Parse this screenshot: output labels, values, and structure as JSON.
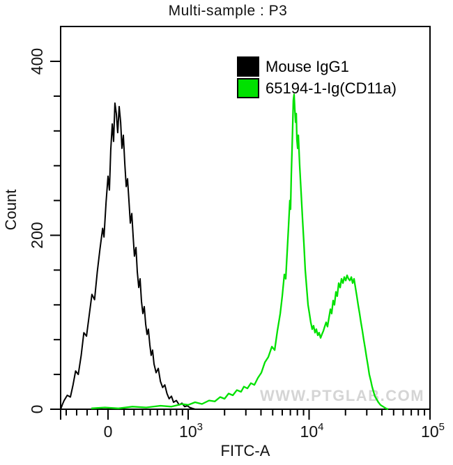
{
  "title": "Multi-sample : P3",
  "watermark": "WWW.PTGLAB.COM",
  "chart_data": {
    "type": "line",
    "subtype": "flow-cytometry-histogram",
    "title": "Multi-sample : P3",
    "xlabel": "FITC-A",
    "ylabel": "Count",
    "x_scale": "biexponential",
    "ylim": [
      0,
      440
    ],
    "grid": false,
    "legend_position": "top-right",
    "y_major_ticks": [
      {
        "value": 0,
        "label": "0"
      },
      {
        "value": 200,
        "label": "200"
      },
      {
        "value": 400,
        "label": "400"
      }
    ],
    "y_minor_ticks": [
      40,
      80,
      120,
      160,
      240,
      280,
      320,
      360
    ],
    "x_major_ticks": [
      {
        "value": 0,
        "base": "0",
        "exp": ""
      },
      {
        "value": 1000,
        "base": "10",
        "exp": "3"
      },
      {
        "value": 10000,
        "base": "10",
        "exp": "4"
      },
      {
        "value": 100000,
        "base": "10",
        "exp": "5"
      }
    ],
    "x_minor_ticks": [
      -400,
      -300,
      -200,
      -100,
      100,
      200,
      300,
      400,
      500,
      600,
      700,
      800,
      900,
      2000,
      3000,
      4000,
      5000,
      6000,
      7000,
      8000,
      9000,
      20000,
      30000,
      40000,
      50000,
      60000,
      70000,
      80000,
      90000
    ],
    "series": [
      {
        "name": "Mouse IgG1",
        "color": "#000000",
        "peak": {
          "x": 30,
          "count": 355
        },
        "points": [
          [
            -450,
            1
          ],
          [
            -435,
            6
          ],
          [
            -420,
            10
          ],
          [
            -390,
            16
          ],
          [
            -360,
            14
          ],
          [
            -335,
            28
          ],
          [
            -310,
            44
          ],
          [
            -285,
            40
          ],
          [
            -257,
            62
          ],
          [
            -231,
            88
          ],
          [
            -206,
            84
          ],
          [
            -180,
            108
          ],
          [
            -154,
            132
          ],
          [
            -129,
            126
          ],
          [
            -103,
            158
          ],
          [
            -77,
            184
          ],
          [
            -51,
            208
          ],
          [
            -39,
            198
          ],
          [
            -19,
            238
          ],
          [
            0,
            268
          ],
          [
            3,
            252
          ],
          [
            8,
            298
          ],
          [
            15,
            328
          ],
          [
            22,
            308
          ],
          [
            30,
            352
          ],
          [
            39,
            340
          ],
          [
            49,
            318
          ],
          [
            60,
            348
          ],
          [
            71,
            330
          ],
          [
            82,
            300
          ],
          [
            94,
            315
          ],
          [
            107,
            282
          ],
          [
            120,
            256
          ],
          [
            133,
            265
          ],
          [
            147,
            240
          ],
          [
            161,
            214
          ],
          [
            176,
            225
          ],
          [
            191,
            198
          ],
          [
            205,
            176
          ],
          [
            222,
            186
          ],
          [
            237,
            158
          ],
          [
            254,
            140
          ],
          [
            270,
            150
          ],
          [
            287,
            124
          ],
          [
            304,
            110
          ],
          [
            322,
            118
          ],
          [
            340,
            98
          ],
          [
            358,
            86
          ],
          [
            375,
            92
          ],
          [
            395,
            74
          ],
          [
            413,
            62
          ],
          [
            432,
            68
          ],
          [
            452,
            52
          ],
          [
            482,
            42
          ],
          [
            513,
            47
          ],
          [
            545,
            32
          ],
          [
            578,
            25
          ],
          [
            611,
            28
          ],
          [
            645,
            18
          ],
          [
            679,
            12
          ],
          [
            716,
            15
          ],
          [
            750,
            8
          ],
          [
            797,
            10
          ],
          [
            844,
            5
          ],
          [
            890,
            7
          ],
          [
            938,
            3
          ],
          [
            985,
            4
          ],
          [
            1030,
            2
          ],
          [
            1085,
            1
          ],
          [
            1140,
            0
          ]
        ]
      },
      {
        "name": "65194-1-Ig(CD11a)",
        "color": "#00e100",
        "peak": {
          "x": 7500,
          "count": 362
        },
        "secondary_peak": {
          "x": 21000,
          "count": 154
        },
        "points": [
          [
            -160,
            1
          ],
          [
            -30,
            2
          ],
          [
            54,
            1
          ],
          [
            183,
            3
          ],
          [
            348,
            2
          ],
          [
            545,
            4
          ],
          [
            716,
            3
          ],
          [
            890,
            6
          ],
          [
            1000,
            5
          ],
          [
            1140,
            8
          ],
          [
            1300,
            6
          ],
          [
            1490,
            10
          ],
          [
            1660,
            9
          ],
          [
            1840,
            14
          ],
          [
            2000,
            12
          ],
          [
            2160,
            18
          ],
          [
            2340,
            16
          ],
          [
            2530,
            22
          ],
          [
            2740,
            20
          ],
          [
            2890,
            26
          ],
          [
            3090,
            24
          ],
          [
            3300,
            30
          ],
          [
            3530,
            28
          ],
          [
            3770,
            36
          ],
          [
            4030,
            42
          ],
          [
            4310,
            54
          ],
          [
            4600,
            60
          ],
          [
            4920,
            72
          ],
          [
            5190,
            68
          ],
          [
            5470,
            90
          ],
          [
            5770,
            110
          ],
          [
            6000,
            130
          ],
          [
            6240,
            155
          ],
          [
            6410,
            150
          ],
          [
            6580,
            180
          ],
          [
            6760,
            210
          ],
          [
            6930,
            240
          ],
          [
            7030,
            230
          ],
          [
            7130,
            270
          ],
          [
            7230,
            300
          ],
          [
            7330,
            330
          ],
          [
            7410,
            355
          ],
          [
            7520,
            362
          ],
          [
            7620,
            345
          ],
          [
            7730,
            330
          ],
          [
            7830,
            340
          ],
          [
            7930,
            310
          ],
          [
            8040,
            300
          ],
          [
            8150,
            315
          ],
          [
            8360,
            280
          ],
          [
            8590,
            250
          ],
          [
            8810,
            220
          ],
          [
            9060,
            190
          ],
          [
            9290,
            160
          ],
          [
            9550,
            140
          ],
          [
            9800,
            120
          ],
          [
            10070,
            110
          ],
          [
            10330,
            100
          ],
          [
            10620,
            92
          ],
          [
            10890,
            96
          ],
          [
            11190,
            88
          ],
          [
            11480,
            92
          ],
          [
            11800,
            85
          ],
          [
            12110,
            88
          ],
          [
            12450,
            82
          ],
          [
            12760,
            86
          ],
          [
            13120,
            90
          ],
          [
            13460,
            95
          ],
          [
            13840,
            100
          ],
          [
            14190,
            95
          ],
          [
            14590,
            105
          ],
          [
            15000,
            115
          ],
          [
            15380,
            110
          ],
          [
            15810,
            125
          ],
          [
            16220,
            120
          ],
          [
            16670,
            135
          ],
          [
            17100,
            130
          ],
          [
            17580,
            145
          ],
          [
            18070,
            140
          ],
          [
            18540,
            150
          ],
          [
            19060,
            145
          ],
          [
            19540,
            152
          ],
          [
            20090,
            148
          ],
          [
            20610,
            154
          ],
          [
            21180,
            150
          ],
          [
            21730,
            148
          ],
          [
            22340,
            152
          ],
          [
            22910,
            145
          ],
          [
            23550,
            150
          ],
          [
            24160,
            140
          ],
          [
            24830,
            130
          ],
          [
            25470,
            120
          ],
          [
            26180,
            110
          ],
          [
            26850,
            100
          ],
          [
            27610,
            90
          ],
          [
            28310,
            80
          ],
          [
            29110,
            70
          ],
          [
            29850,
            60
          ],
          [
            30690,
            50
          ],
          [
            31480,
            40
          ],
          [
            32360,
            33
          ],
          [
            33190,
            26
          ],
          [
            34120,
            20
          ],
          [
            35000,
            15
          ],
          [
            35980,
            12
          ],
          [
            37410,
            8
          ],
          [
            38900,
            5
          ],
          [
            41000,
            3
          ],
          [
            43250,
            1
          ],
          [
            45100,
            0
          ]
        ]
      }
    ]
  }
}
